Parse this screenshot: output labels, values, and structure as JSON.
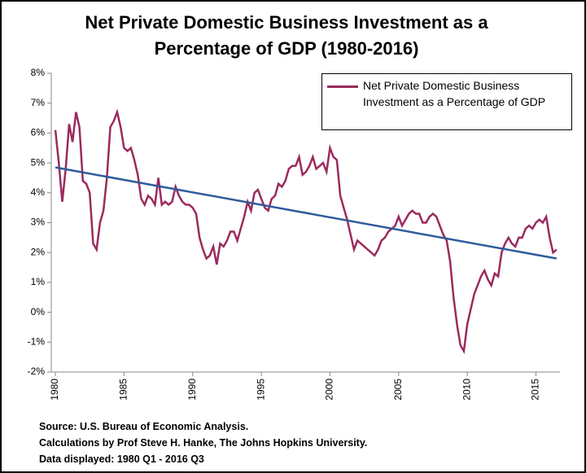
{
  "chart_data": {
    "type": "line",
    "title": "Net Private Domestic Business Investment as a Percentage of GDP (1980-2016)",
    "notes": [
      "Source: U.S. Bureau of Economic Analysis.",
      "Calculations by Prof Steve H. Hanke, The Johns Hopkins University.",
      "Data displayed: 1980 Q1 - 2016 Q3"
    ],
    "x": [
      1980,
      1980.25,
      1980.5,
      1980.75,
      1981,
      1981.25,
      1981.5,
      1981.75,
      1982,
      1982.25,
      1982.5,
      1982.75,
      1983,
      1983.25,
      1983.5,
      1983.75,
      1984,
      1984.25,
      1984.5,
      1984.75,
      1985,
      1985.25,
      1985.5,
      1985.75,
      1986,
      1986.25,
      1986.5,
      1986.75,
      1987,
      1987.25,
      1987.5,
      1987.75,
      1988,
      1988.25,
      1988.5,
      1988.75,
      1989,
      1989.25,
      1989.5,
      1989.75,
      1990,
      1990.25,
      1990.5,
      1990.75,
      1991,
      1991.25,
      1991.5,
      1991.75,
      1992,
      1992.25,
      1992.5,
      1992.75,
      1993,
      1993.25,
      1993.5,
      1993.75,
      1994,
      1994.25,
      1994.5,
      1994.75,
      1995,
      1995.25,
      1995.5,
      1995.75,
      1996,
      1996.25,
      1996.5,
      1996.75,
      1997,
      1997.25,
      1997.5,
      1997.75,
      1998,
      1998.25,
      1998.5,
      1998.75,
      1999,
      1999.25,
      1999.5,
      1999.75,
      2000,
      2000.25,
      2000.5,
      2000.75,
      2001,
      2001.25,
      2001.5,
      2001.75,
      2002,
      2002.25,
      2002.5,
      2002.75,
      2003,
      2003.25,
      2003.5,
      2003.75,
      2004,
      2004.25,
      2004.5,
      2004.75,
      2005,
      2005.25,
      2005.5,
      2005.75,
      2006,
      2006.25,
      2006.5,
      2006.75,
      2007,
      2007.25,
      2007.5,
      2007.75,
      2008,
      2008.25,
      2008.5,
      2008.75,
      2009,
      2009.25,
      2009.5,
      2009.75,
      2010,
      2010.25,
      2010.5,
      2010.75,
      2011,
      2011.25,
      2011.5,
      2011.75,
      2012,
      2012.25,
      2012.5,
      2012.75,
      2013,
      2013.25,
      2013.5,
      2013.75,
      2014,
      2014.25,
      2014.5,
      2014.75,
      2015,
      2015.25,
      2015.5,
      2015.75,
      2016,
      2016.25,
      2016.5
    ],
    "series": [
      {
        "name": "Net Private Domestic Business Investment as a Percentage of GDP",
        "color": "#9b2a5e",
        "values": [
          6.1,
          5.0,
          3.7,
          4.8,
          6.3,
          5.7,
          6.7,
          6.2,
          4.4,
          4.3,
          4.0,
          2.3,
          2.1,
          3.0,
          3.4,
          4.5,
          6.2,
          6.4,
          6.7,
          6.2,
          5.5,
          5.4,
          5.5,
          5.1,
          4.6,
          3.8,
          3.6,
          3.9,
          3.8,
          3.6,
          4.5,
          3.6,
          3.7,
          3.6,
          3.7,
          4.2,
          3.9,
          3.7,
          3.6,
          3.6,
          3.5,
          3.3,
          2.5,
          2.1,
          1.8,
          1.9,
          2.2,
          1.6,
          2.3,
          2.2,
          2.4,
          2.7,
          2.7,
          2.4,
          2.8,
          3.2,
          3.7,
          3.4,
          4.0,
          4.1,
          3.8,
          3.5,
          3.4,
          3.8,
          3.9,
          4.3,
          4.2,
          4.4,
          4.8,
          4.9,
          4.9,
          5.2,
          4.6,
          4.7,
          4.9,
          5.2,
          4.8,
          4.9,
          5.0,
          4.7,
          5.5,
          5.2,
          5.1,
          3.9,
          3.5,
          3.1,
          2.6,
          2.1,
          2.4,
          2.3,
          2.2,
          2.1,
          2.0,
          1.9,
          2.1,
          2.4,
          2.5,
          2.7,
          2.8,
          2.9,
          3.2,
          2.9,
          3.1,
          3.3,
          3.4,
          3.3,
          3.3,
          3.0,
          3.0,
          3.2,
          3.3,
          3.2,
          2.9,
          2.6,
          2.4,
          1.7,
          0.5,
          -0.4,
          -1.1,
          -1.3,
          -0.4,
          0.1,
          0.6,
          0.9,
          1.2,
          1.4,
          1.1,
          0.9,
          1.3,
          1.2,
          2.0,
          2.3,
          2.5,
          2.3,
          2.2,
          2.5,
          2.5,
          2.8,
          2.9,
          2.8,
          3.0,
          3.1,
          3.0,
          3.2,
          2.5,
          2.0,
          2.1
        ]
      }
    ],
    "trend": {
      "color": "#2e5b9a",
      "x": [
        1980,
        2016.5
      ],
      "values": [
        4.85,
        1.8
      ]
    },
    "xlim": [
      1979.7,
      2016.75
    ],
    "xticks": [
      1980,
      1985,
      1990,
      1995,
      2000,
      2005,
      2010,
      2015
    ],
    "ylim": [
      -2,
      8
    ],
    "yticks": [
      {
        "value": -2,
        "label": "-2%"
      },
      {
        "value": -1,
        "label": "-1%"
      },
      {
        "value": 0,
        "label": "0%"
      },
      {
        "value": 1,
        "label": "1%"
      },
      {
        "value": 2,
        "label": "2%"
      },
      {
        "value": 3,
        "label": "3%"
      },
      {
        "value": 4,
        "label": "4%"
      },
      {
        "value": 5,
        "label": "5%"
      },
      {
        "value": 6,
        "label": "6%"
      },
      {
        "value": 7,
        "label": "7%"
      },
      {
        "value": 8,
        "label": "8%"
      }
    ],
    "grid": false
  }
}
